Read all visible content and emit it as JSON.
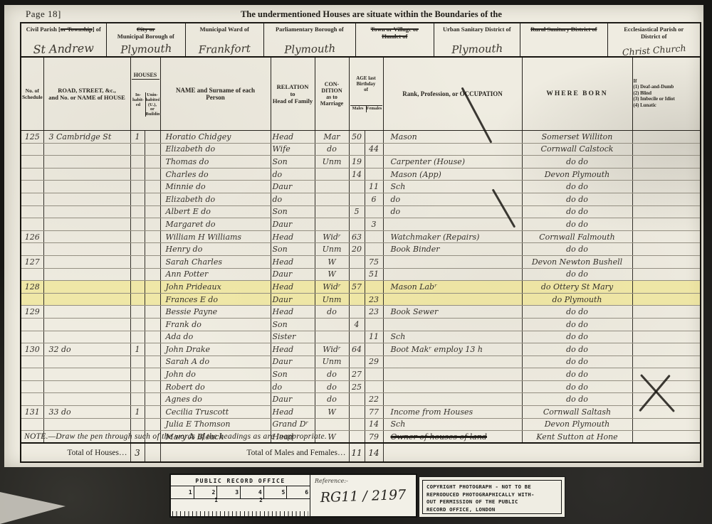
{
  "page": {
    "page_number_label": "Page 18]",
    "title": "The undermentioned Houses are situate within the Boundaries of the",
    "note": "NOTE.—Draw the pen through such of the words of the headings as are inappropriate."
  },
  "districts": [
    {
      "pre": "Civil Parish [",
      "struck": "or Township",
      "post": "] of",
      "value": "St Andrew"
    },
    {
      "pre": "",
      "struck": "City or",
      "post": "\nMunicipal Borough of",
      "value": "Plymouth"
    },
    {
      "pre": "",
      "struck": "",
      "post": "Municipal Ward of",
      "value": "Frankfort"
    },
    {
      "pre": "",
      "struck": "",
      "post": "Parliamentary Borough of",
      "value": "Plymouth"
    },
    {
      "pre": "",
      "struck": "Town or Village or\nHamlet of",
      "post": "",
      "value": ""
    },
    {
      "pre": "",
      "struck": "",
      "post": "Urban Sanitary District of",
      "value": "Plymouth"
    },
    {
      "pre": "",
      "struck": "Rural Sanitary District of",
      "post": "",
      "value": ""
    },
    {
      "pre": "",
      "struck": "",
      "post": "Ecclesiastical Parish or\nDistrict of",
      "value": "Christ Church"
    }
  ],
  "headers": {
    "schedule": "No. of\nSchedule",
    "road": "ROAD, STREET, &c.,\nand No. or NAME of HOUSE",
    "houses": "HOUSES",
    "inhabited": "In-\nhabit-\ned",
    "uninhabited": "Unin-\nhabited\n(U.), or\nBuilding\n(B.)",
    "name": "NAME and Surname of each\nPerson",
    "relation": "RELATION\nto\nHead of Family",
    "condition": "CON-\nDITION\nas to\nMarriage",
    "age": "AGE last\nBirthday\nof",
    "males": "Males",
    "females": "Females",
    "occupation": "Rank, Profession, or OCCUPATION",
    "born": "WHERE  BORN",
    "infirmity": "If\n(1) Deaf-and-Dumb\n(2) Blind\n(3) Imbecile or Idiot\n(4) Lunatic"
  },
  "rows": [
    {
      "s": "125",
      "r": "3 Cambridge St",
      "i": "1",
      "n": "Horatio Chidgey",
      "rel": "Head",
      "c": "Mar",
      "m": "50",
      "f": "",
      "occ": "Mason",
      "b": "Somerset Williton"
    },
    {
      "s": "",
      "r": "",
      "i": "",
      "n": "Elizabeth do",
      "rel": "Wife",
      "c": "do",
      "m": "",
      "f": "44",
      "occ": "",
      "b": "Cornwall Calstock"
    },
    {
      "s": "",
      "r": "",
      "i": "",
      "n": "Thomas do",
      "rel": "Son",
      "c": "Unm",
      "m": "19",
      "f": "",
      "occ": "Carpenter (House)",
      "b": "do    do"
    },
    {
      "s": "",
      "r": "",
      "i": "",
      "n": "Charles do",
      "rel": "do",
      "c": "",
      "m": "14",
      "f": "",
      "occ": "Mason (App)",
      "b": "Devon Plymouth"
    },
    {
      "s": "",
      "r": "",
      "i": "",
      "n": "Minnie do",
      "rel": "Daur",
      "c": "",
      "m": "",
      "f": "11",
      "occ": "Sch",
      "b": "do    do"
    },
    {
      "s": "",
      "r": "",
      "i": "",
      "n": "Elizabeth do",
      "rel": "do",
      "c": "",
      "m": "",
      "f": "6",
      "occ": "do",
      "b": "do    do"
    },
    {
      "s": "",
      "r": "",
      "i": "",
      "n": "Albert E do",
      "rel": "Son",
      "c": "",
      "m": "5",
      "f": "",
      "occ": "do",
      "b": "do    do"
    },
    {
      "s": "",
      "r": "",
      "i": "",
      "n": "Margaret do",
      "rel": "Daur",
      "c": "",
      "m": "",
      "f": "3",
      "occ": "",
      "b": "do    do"
    },
    {
      "s": "126",
      "r": "",
      "i": "",
      "n": "William H Williams",
      "rel": "Head",
      "c": "Widʳ",
      "m": "63",
      "f": "",
      "occ": "Watchmaker (Repairs)",
      "b": "Cornwall Falmouth"
    },
    {
      "s": "",
      "r": "",
      "i": "",
      "n": "Henry do",
      "rel": "Son",
      "c": "Unm",
      "m": "20",
      "f": "",
      "occ": "Book Binder",
      "b": "do    do"
    },
    {
      "s": "127",
      "r": "",
      "i": "",
      "n": "Sarah Charles",
      "rel": "Head",
      "c": "W",
      "m": "",
      "f": "75",
      "occ": "",
      "b": "Devon Newton Bushell"
    },
    {
      "s": "",
      "r": "",
      "i": "",
      "n": "Ann Potter",
      "rel": "Daur",
      "c": "W",
      "m": "",
      "f": "51",
      "occ": "",
      "b": "do    do"
    },
    {
      "s": "128",
      "r": "",
      "i": "",
      "n": "John Prideaux",
      "rel": "Head",
      "c": "Widʳ",
      "m": "57",
      "f": "",
      "occ": "Mason Labʳ",
      "b": "do  Ottery St Mary",
      "hl": true
    },
    {
      "s": "",
      "r": "",
      "i": "",
      "n": "Frances E do",
      "rel": "Daur",
      "c": "Unm",
      "m": "",
      "f": "23",
      "occ": "",
      "b": "do  Plymouth",
      "hl": true
    },
    {
      "s": "129",
      "r": "",
      "i": "",
      "n": "Bessie Payne",
      "rel": "Head",
      "c": "do",
      "m": "",
      "f": "23",
      "occ": "Book Sewer",
      "b": "do    do"
    },
    {
      "s": "",
      "r": "",
      "i": "",
      "n": "Frank do",
      "rel": "Son",
      "c": "",
      "m": "4",
      "f": "",
      "occ": "",
      "b": "do    do"
    },
    {
      "s": "",
      "r": "",
      "i": "",
      "n": "Ada do",
      "rel": "Sister",
      "c": "",
      "m": "",
      "f": "11",
      "occ": "Sch",
      "b": "do    do"
    },
    {
      "s": "130",
      "r": "32    do",
      "i": "1",
      "n": "John Drake",
      "rel": "Head",
      "c": "Widʳ",
      "m": "64",
      "f": "",
      "occ": "Boot Makʳ employ 13 h",
      "b": "do    do"
    },
    {
      "s": "",
      "r": "",
      "i": "",
      "n": "Sarah A do",
      "rel": "Daur",
      "c": "Unm",
      "m": "",
      "f": "29",
      "occ": "",
      "b": "do    do"
    },
    {
      "s": "",
      "r": "",
      "i": "",
      "n": "John do",
      "rel": "Son",
      "c": "do",
      "m": "27",
      "f": "",
      "occ": "",
      "b": "do    do"
    },
    {
      "s": "",
      "r": "",
      "i": "",
      "n": "Robert do",
      "rel": "do",
      "c": "do",
      "m": "25",
      "f": "",
      "occ": "",
      "b": "do    do"
    },
    {
      "s": "",
      "r": "",
      "i": "",
      "n": "Agnes do",
      "rel": "Daur",
      "c": "do",
      "m": "",
      "f": "22",
      "occ": "",
      "b": "do    do"
    },
    {
      "s": "131",
      "r": "33    do",
      "i": "1",
      "n": "Cecilia Truscott",
      "rel": "Head",
      "c": "W",
      "m": "",
      "f": "77",
      "occ": "Income from Houses",
      "b": "Cornwall Saltash"
    },
    {
      "s": "",
      "r": "",
      "i": "",
      "n": "Julia E Thomson",
      "rel": "Grand Dʳ",
      "c": "",
      "m": "",
      "f": "14",
      "occ": "Sch",
      "b": "Devon Plymouth"
    },
    {
      "s": "",
      "r": "",
      "i": "",
      "n": "Mary A Bleack",
      "rel": "Head",
      "c": "W",
      "m": "",
      "f": "79",
      "occ": "Owner of houses of land",
      "st": true,
      "b": "Kent Sutton at Hone"
    }
  ],
  "totals": {
    "houses_label": "Total of Houses…",
    "houses": "3",
    "mf_label": "Total of Males and Females…",
    "males": "11",
    "females": "14"
  },
  "stamps": {
    "pro": {
      "title": "PUBLIC RECORD OFFICE",
      "scale_numbers": [
        "1",
        "2",
        "3",
        "4",
        "5",
        "6"
      ],
      "lower_scale_numbers": [
        "1",
        "2"
      ],
      "reference_label": "Reference:-",
      "reference_value": "RG11 / 2197"
    },
    "copyright": {
      "text": "COPYRIGHT PHOTOGRAPH - NOT TO BE\nREPRODUCED PHOTOGRAPHICALLY WITH-\nOUT PERMISSION OF THE PUBLIC\nRECORD OFFICE, LONDON"
    }
  }
}
